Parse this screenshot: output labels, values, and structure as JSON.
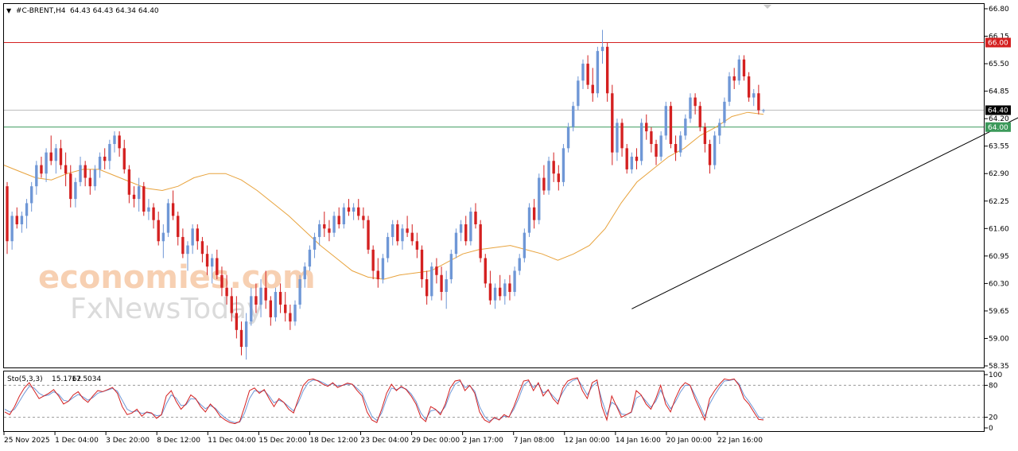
{
  "header": {
    "symbol": "#C-BRENT,H4",
    "ohlc": "64.43 64.43 64.34 64.40"
  },
  "watermark": {
    "line1": "economies.com",
    "line2": "FxNewsToday"
  },
  "colors": {
    "bull": "#6f97d6",
    "bear": "#d42020",
    "ma": "#e8a33d",
    "resistance": "#d42020",
    "support": "#3c9a5b",
    "trend": "#000000",
    "stoch_main": "#d42020",
    "stoch_signal": "#6f97d6"
  },
  "chart_data": {
    "type": "candlestick",
    "symbol": "#C-BRENT",
    "timeframe": "H4",
    "price_axis": {
      "ticks": [
        "66.80",
        "66.15",
        "65.50",
        "64.85",
        "64.20",
        "63.55",
        "62.90",
        "62.25",
        "61.60",
        "60.95",
        "60.30",
        "59.65",
        "59.00",
        "58.35"
      ],
      "range": [
        58.35,
        66.8
      ]
    },
    "time_axis": {
      "labels": [
        "25 Nov 2025",
        "1 Dec 04:00",
        "3 Dec 20:00",
        "8 Dec 12:00",
        "11 Dec 04:00",
        "15 Dec 20:00",
        "18 Dec 12:00",
        "23 Dec 04:00",
        "29 Dec 00:00",
        "2 Jan 17:00",
        "7 Jan 08:00",
        "12 Jan 00:00",
        "14 Jan 16:00",
        "20 Jan 00:00",
        "22 Jan 16:00"
      ]
    },
    "levels": [
      {
        "label": "66.00",
        "value": 66.0,
        "color": "#d42020"
      },
      {
        "label": "64.00",
        "value": 64.0,
        "color": "#3c9a5b"
      },
      {
        "label": "64.40",
        "value": 64.4,
        "color": "#000000"
      }
    ],
    "trendline": {
      "from": {
        "bar": 128,
        "price": 59.7
      },
      "to": {
        "bar": 206,
        "price": 64.9
      }
    },
    "candles": [
      [
        62.6,
        62.7,
        61.0,
        61.3
      ],
      [
        61.3,
        62.0,
        61.1,
        61.9
      ],
      [
        61.9,
        62.1,
        61.6,
        61.7
      ],
      [
        61.7,
        62.0,
        61.5,
        61.9
      ],
      [
        61.9,
        62.3,
        61.6,
        62.2
      ],
      [
        62.2,
        62.7,
        62.0,
        62.6
      ],
      [
        62.6,
        63.2,
        62.4,
        63.1
      ],
      [
        63.1,
        63.3,
        62.8,
        62.9
      ],
      [
        62.9,
        63.5,
        62.7,
        63.4
      ],
      [
        63.4,
        63.8,
        63.1,
        63.2
      ],
      [
        63.2,
        63.6,
        62.9,
        63.5
      ],
      [
        63.5,
        63.7,
        63.0,
        63.1
      ],
      [
        63.1,
        63.4,
        62.6,
        62.9
      ],
      [
        62.9,
        63.1,
        62.1,
        62.3
      ],
      [
        62.3,
        62.8,
        62.1,
        62.7
      ],
      [
        62.7,
        63.3,
        62.6,
        63.1
      ],
      [
        63.1,
        63.2,
        62.6,
        62.8
      ],
      [
        62.8,
        63.0,
        62.4,
        62.6
      ],
      [
        62.6,
        63.1,
        62.5,
        63.0
      ],
      [
        63.0,
        63.4,
        62.8,
        63.3
      ],
      [
        63.3,
        63.5,
        63.0,
        63.2
      ],
      [
        63.2,
        63.7,
        63.0,
        63.6
      ],
      [
        63.6,
        63.9,
        63.4,
        63.8
      ],
      [
        63.8,
        63.9,
        63.3,
        63.5
      ],
      [
        63.5,
        63.7,
        62.9,
        63.0
      ],
      [
        63.0,
        63.1,
        62.2,
        62.4
      ],
      [
        62.4,
        62.6,
        62.1,
        62.3
      ],
      [
        62.3,
        62.8,
        62.0,
        62.6
      ],
      [
        62.6,
        62.7,
        61.9,
        62.0
      ],
      [
        62.0,
        62.3,
        61.8,
        62.1
      ],
      [
        62.1,
        62.2,
        61.6,
        61.8
      ],
      [
        61.8,
        62.0,
        61.2,
        61.3
      ],
      [
        61.3,
        61.7,
        60.9,
        61.5
      ],
      [
        61.5,
        62.3,
        61.4,
        62.2
      ],
      [
        62.2,
        62.5,
        61.8,
        61.9
      ],
      [
        61.9,
        62.0,
        61.2,
        61.4
      ],
      [
        61.4,
        61.6,
        60.9,
        61.0
      ],
      [
        61.0,
        61.3,
        60.6,
        61.2
      ],
      [
        61.2,
        61.7,
        61.0,
        61.6
      ],
      [
        61.6,
        61.7,
        61.1,
        61.3
      ],
      [
        61.3,
        61.4,
        60.8,
        61.0
      ],
      [
        61.0,
        61.2,
        60.5,
        60.7
      ],
      [
        60.7,
        61.0,
        60.3,
        60.9
      ],
      [
        60.9,
        61.1,
        60.4,
        60.5
      ],
      [
        60.5,
        60.7,
        60.0,
        60.2
      ],
      [
        60.2,
        60.5,
        59.8,
        60.0
      ],
      [
        60.0,
        60.2,
        59.4,
        59.6
      ],
      [
        59.6,
        60.0,
        59.0,
        59.2
      ],
      [
        59.2,
        59.4,
        58.6,
        58.8
      ],
      [
        58.8,
        59.6,
        58.5,
        59.4
      ],
      [
        59.4,
        60.2,
        59.3,
        60.0
      ],
      [
        60.0,
        60.3,
        59.6,
        59.8
      ],
      [
        59.8,
        60.4,
        59.5,
        60.2
      ],
      [
        60.2,
        60.6,
        59.7,
        59.9
      ],
      [
        59.9,
        60.0,
        59.3,
        59.5
      ],
      [
        59.5,
        60.2,
        59.4,
        60.1
      ],
      [
        60.1,
        60.3,
        59.6,
        59.8
      ],
      [
        59.8,
        60.1,
        59.4,
        59.6
      ],
      [
        59.6,
        59.8,
        59.2,
        59.4
      ],
      [
        59.4,
        59.9,
        59.3,
        59.8
      ],
      [
        59.8,
        60.5,
        59.7,
        60.4
      ],
      [
        60.4,
        60.8,
        60.2,
        60.7
      ],
      [
        60.7,
        61.2,
        60.6,
        61.1
      ],
      [
        61.1,
        61.5,
        60.9,
        61.4
      ],
      [
        61.4,
        61.8,
        61.2,
        61.7
      ],
      [
        61.7,
        62.0,
        61.4,
        61.6
      ],
      [
        61.6,
        61.8,
        61.3,
        61.5
      ],
      [
        61.5,
        62.0,
        61.4,
        61.9
      ],
      [
        61.9,
        62.1,
        61.6,
        61.7
      ],
      [
        61.7,
        62.2,
        61.6,
        62.1
      ],
      [
        62.1,
        62.3,
        61.9,
        62.0
      ],
      [
        62.0,
        62.2,
        61.8,
        62.1
      ],
      [
        62.1,
        62.3,
        61.8,
        61.9
      ],
      [
        61.9,
        62.1,
        61.6,
        61.8
      ],
      [
        61.8,
        61.9,
        61.0,
        61.1
      ],
      [
        61.1,
        61.2,
        60.4,
        60.6
      ],
      [
        60.6,
        60.9,
        60.2,
        60.4
      ],
      [
        60.4,
        61.0,
        60.3,
        60.9
      ],
      [
        60.9,
        61.5,
        60.8,
        61.4
      ],
      [
        61.4,
        61.8,
        61.2,
        61.7
      ],
      [
        61.7,
        61.8,
        61.2,
        61.3
      ],
      [
        61.3,
        61.7,
        61.1,
        61.6
      ],
      [
        61.6,
        61.9,
        61.4,
        61.5
      ],
      [
        61.5,
        61.7,
        61.2,
        61.3
      ],
      [
        61.3,
        61.5,
        60.9,
        61.1
      ],
      [
        61.1,
        61.2,
        60.2,
        60.4
      ],
      [
        60.4,
        60.6,
        59.8,
        60.0
      ],
      [
        60.0,
        60.8,
        59.9,
        60.7
      ],
      [
        60.7,
        60.9,
        60.3,
        60.5
      ],
      [
        60.5,
        60.7,
        59.9,
        60.1
      ],
      [
        60.1,
        60.6,
        59.7,
        60.4
      ],
      [
        60.4,
        61.1,
        60.3,
        61.0
      ],
      [
        61.0,
        61.6,
        60.9,
        61.5
      ],
      [
        61.5,
        61.8,
        61.3,
        61.7
      ],
      [
        61.7,
        61.9,
        61.2,
        61.3
      ],
      [
        61.3,
        62.1,
        61.2,
        62.0
      ],
      [
        62.0,
        62.2,
        61.6,
        61.7
      ],
      [
        61.7,
        61.8,
        60.8,
        60.9
      ],
      [
        60.9,
        61.0,
        60.2,
        60.3
      ],
      [
        60.3,
        60.6,
        59.8,
        59.9
      ],
      [
        59.9,
        60.3,
        59.7,
        60.2
      ],
      [
        60.2,
        60.5,
        59.9,
        60.0
      ],
      [
        60.0,
        60.4,
        59.8,
        60.3
      ],
      [
        60.3,
        60.5,
        59.9,
        60.1
      ],
      [
        60.1,
        60.7,
        60.0,
        60.6
      ],
      [
        60.6,
        61.0,
        60.5,
        60.9
      ],
      [
        60.9,
        61.6,
        60.8,
        61.5
      ],
      [
        61.5,
        62.2,
        61.4,
        62.1
      ],
      [
        62.1,
        62.3,
        61.6,
        61.8
      ],
      [
        61.8,
        62.9,
        61.7,
        62.8
      ],
      [
        62.8,
        63.1,
        62.4,
        62.5
      ],
      [
        62.5,
        63.3,
        62.4,
        63.2
      ],
      [
        63.2,
        63.4,
        62.7,
        62.9
      ],
      [
        62.9,
        63.1,
        62.5,
        62.7
      ],
      [
        62.7,
        63.6,
        62.6,
        63.5
      ],
      [
        63.5,
        64.1,
        63.4,
        64.0
      ],
      [
        64.0,
        64.6,
        63.9,
        64.5
      ],
      [
        64.5,
        65.2,
        64.4,
        65.1
      ],
      [
        65.1,
        65.6,
        64.9,
        65.5
      ],
      [
        65.5,
        65.7,
        64.9,
        65.0
      ],
      [
        65.0,
        65.4,
        64.6,
        64.8
      ],
      [
        64.8,
        65.9,
        64.7,
        65.8
      ],
      [
        65.8,
        66.3,
        65.5,
        65.9
      ],
      [
        65.9,
        66.0,
        64.6,
        64.8
      ],
      [
        64.8,
        65.0,
        63.1,
        63.4
      ],
      [
        63.4,
        64.2,
        63.2,
        64.1
      ],
      [
        64.1,
        64.2,
        63.3,
        63.5
      ],
      [
        63.5,
        63.6,
        62.9,
        63.0
      ],
      [
        63.0,
        63.4,
        62.9,
        63.3
      ],
      [
        63.3,
        63.5,
        63.0,
        63.2
      ],
      [
        63.2,
        64.2,
        63.1,
        64.1
      ],
      [
        64.1,
        64.3,
        63.7,
        63.9
      ],
      [
        63.9,
        64.0,
        63.4,
        63.6
      ],
      [
        63.6,
        63.7,
        63.1,
        63.3
      ],
      [
        63.3,
        63.9,
        63.2,
        63.8
      ],
      [
        63.8,
        64.6,
        63.7,
        64.5
      ],
      [
        64.5,
        64.6,
        63.5,
        63.6
      ],
      [
        63.6,
        63.8,
        63.2,
        63.4
      ],
      [
        63.4,
        63.9,
        63.3,
        63.8
      ],
      [
        63.8,
        64.3,
        63.7,
        64.2
      ],
      [
        64.2,
        64.8,
        64.1,
        64.7
      ],
      [
        64.7,
        64.8,
        64.3,
        64.5
      ],
      [
        64.5,
        64.6,
        63.9,
        64.0
      ],
      [
        64.0,
        64.1,
        63.4,
        63.6
      ],
      [
        63.6,
        63.7,
        62.9,
        63.1
      ],
      [
        63.1,
        63.9,
        63.0,
        63.8
      ],
      [
        63.8,
        64.2,
        63.6,
        64.1
      ],
      [
        64.1,
        64.7,
        64.0,
        64.6
      ],
      [
        64.6,
        65.3,
        64.5,
        65.2
      ],
      [
        65.2,
        65.4,
        64.9,
        65.1
      ],
      [
        65.1,
        65.7,
        65.0,
        65.6
      ],
      [
        65.6,
        65.7,
        65.1,
        65.2
      ],
      [
        65.2,
        65.3,
        64.6,
        64.7
      ],
      [
        64.7,
        64.9,
        64.5,
        64.8
      ],
      [
        64.8,
        65.0,
        64.3,
        64.4
      ],
      [
        64.4,
        64.43,
        64.34,
        64.4
      ]
    ],
    "moving_average": [
      63.1,
      62.95,
      62.8,
      62.75,
      62.9,
      63.0,
      63.0,
      62.85,
      62.7,
      62.55,
      62.5,
      62.6,
      62.8,
      62.9,
      62.9,
      62.75,
      62.5,
      62.2,
      61.9,
      61.55,
      61.2,
      60.9,
      60.6,
      60.45,
      60.4,
      60.5,
      60.55,
      60.6,
      60.8,
      61.0,
      61.1,
      61.15,
      61.2,
      61.1,
      61.0,
      60.85,
      61.0,
      61.2,
      61.6,
      62.2,
      62.7,
      63.0,
      63.3,
      63.5,
      63.8,
      64.0,
      64.25,
      64.35,
      64.3
    ],
    "stochastic": {
      "label": "Sto(5,3,3)",
      "main_value": "15.1762",
      "signal_value": "17.5034",
      "axis_ticks": [
        "100",
        "80",
        "20",
        "0"
      ],
      "range": [
        0,
        100
      ],
      "levels": [
        80,
        20
      ],
      "main": [
        30,
        25,
        40,
        60,
        75,
        85,
        70,
        55,
        60,
        65,
        72,
        60,
        45,
        50,
        62,
        68,
        55,
        48,
        60,
        70,
        68,
        72,
        76,
        65,
        40,
        25,
        28,
        35,
        22,
        30,
        28,
        18,
        25,
        60,
        70,
        50,
        35,
        45,
        62,
        55,
        40,
        30,
        45,
        35,
        22,
        15,
        10,
        8,
        12,
        40,
        70,
        75,
        65,
        72,
        55,
        40,
        55,
        48,
        35,
        28,
        55,
        80,
        90,
        92,
        88,
        82,
        78,
        85,
        76,
        80,
        84,
        82,
        70,
        60,
        30,
        15,
        10,
        35,
        65,
        82,
        70,
        78,
        72,
        60,
        45,
        20,
        12,
        40,
        35,
        25,
        45,
        75,
        88,
        90,
        70,
        80,
        65,
        30,
        15,
        10,
        20,
        15,
        25,
        20,
        40,
        65,
        88,
        90,
        70,
        85,
        60,
        72,
        55,
        45,
        75,
        88,
        92,
        94,
        70,
        55,
        85,
        90,
        40,
        15,
        60,
        40,
        20,
        25,
        30,
        70,
        62,
        45,
        35,
        55,
        80,
        45,
        30,
        55,
        75,
        85,
        80,
        55,
        35,
        15,
        55,
        70,
        82,
        92,
        90,
        92,
        80,
        55,
        45,
        30,
        16,
        15
      ],
      "signal": [
        35,
        30,
        35,
        50,
        65,
        78,
        75,
        65,
        60,
        62,
        68,
        63,
        52,
        50,
        57,
        63,
        58,
        52,
        57,
        65,
        68,
        71,
        74,
        69,
        52,
        35,
        30,
        32,
        27,
        29,
        27,
        23,
        24,
        45,
        62,
        56,
        42,
        43,
        55,
        54,
        44,
        36,
        42,
        37,
        27,
        19,
        13,
        10,
        11,
        28,
        55,
        70,
        68,
        70,
        60,
        47,
        52,
        48,
        40,
        32,
        48,
        70,
        85,
        90,
        89,
        85,
        80,
        83,
        79,
        80,
        82,
        82,
        74,
        65,
        42,
        22,
        14,
        28,
        55,
        75,
        72,
        76,
        73,
        64,
        50,
        28,
        16,
        32,
        34,
        28,
        40,
        65,
        82,
        88,
        76,
        79,
        69,
        40,
        22,
        13,
        18,
        16,
        22,
        21,
        35,
        56,
        80,
        88,
        76,
        82,
        66,
        70,
        60,
        50,
        67,
        82,
        89,
        92,
        78,
        62,
        78,
        86,
        52,
        25,
        48,
        42,
        26,
        25,
        29,
        56,
        61,
        50,
        39,
        50,
        71,
        52,
        36,
        49,
        67,
        80,
        80,
        62,
        42,
        22,
        45,
        62,
        76,
        88,
        89,
        91,
        83,
        62,
        50,
        36,
        21,
        17
      ]
    }
  }
}
